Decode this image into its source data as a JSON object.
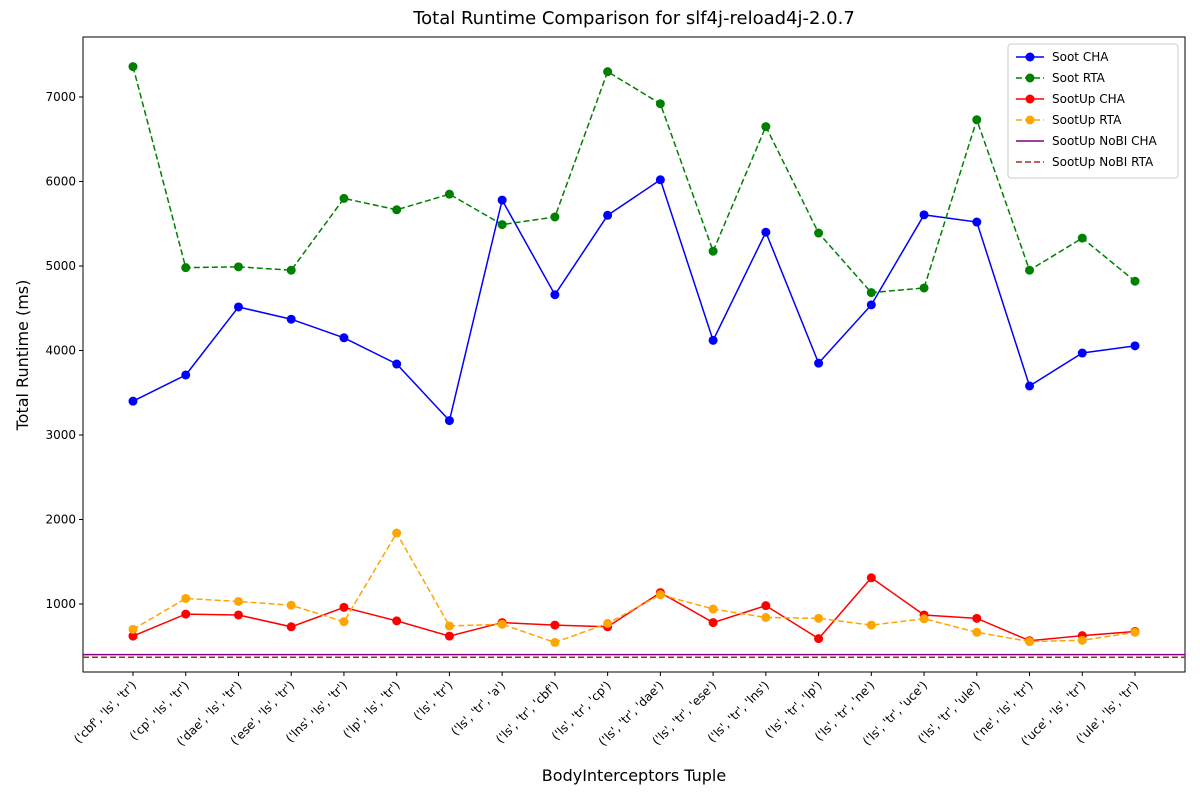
{
  "chart_data": {
    "type": "line",
    "title": "Total Runtime Comparison for slf4j-reload4j-2.0.7",
    "x_label": "BodyInterceptors Tuple",
    "y_label": "Total Runtime (ms)",
    "categories": [
      "('cbf', 'ls', 'tr')",
      "('cp', 'ls', 'tr')",
      "('dae', 'ls', 'tr')",
      "('ese', 'ls', 'tr')",
      "('lns', 'ls', 'tr')",
      "('lp', 'ls', 'tr')",
      "('ls', 'tr')",
      "('ls', 'tr', 'a')",
      "('ls', 'tr', 'cbf')",
      "('ls', 'tr', 'cp')",
      "('ls', 'tr', 'dae')",
      "('ls', 'tr', 'ese')",
      "('ls', 'tr', 'lns')",
      "('ls', 'tr', 'lp')",
      "('ls', 'tr', 'ne')",
      "('ls', 'tr', 'uce')",
      "('ls', 'tr', 'ule')",
      "('ne', 'ls', 'tr')",
      "('uce', 'ls', 'tr')",
      "('ule', 'ls', 'tr')"
    ],
    "series": [
      {
        "name": "Soot CHA",
        "color": "#0000ff",
        "dash": false,
        "marker": true,
        "values": [
          3400,
          3710,
          4515,
          4370,
          4150,
          3840,
          3170,
          5780,
          4660,
          5600,
          6020,
          4120,
          5400,
          3850,
          4540,
          5605,
          5520,
          3580,
          3970,
          4055
        ]
      },
      {
        "name": "Soot RTA",
        "color": "#008000",
        "dash": true,
        "marker": true,
        "values": [
          7360,
          4980,
          4990,
          4950,
          5800,
          5665,
          5850,
          5490,
          5580,
          7300,
          6920,
          5175,
          6650,
          5390,
          4685,
          4740,
          6730,
          4950,
          5330,
          4820
        ]
      },
      {
        "name": "SootUp CHA",
        "color": "#ff0000",
        "dash": false,
        "marker": true,
        "values": [
          620,
          880,
          870,
          730,
          960,
          800,
          620,
          780,
          750,
          730,
          1135,
          780,
          980,
          590,
          1310,
          870,
          830,
          565,
          625,
          675
        ]
      },
      {
        "name": "SootUp RTA",
        "color": "#ffa500",
        "dash": true,
        "marker": true,
        "values": [
          700,
          1065,
          1030,
          985,
          790,
          1840,
          740,
          760,
          545,
          770,
          1110,
          940,
          840,
          830,
          750,
          825,
          665,
          555,
          570,
          665
        ]
      },
      {
        "name": "SootUp NoBI CHA",
        "color": "#800080",
        "dash": false,
        "marker": false,
        "hline": 400
      },
      {
        "name": "SootUp NoBI RTA",
        "color": "#a52a2a",
        "dash": true,
        "marker": false,
        "hline": 370
      }
    ],
    "ylim": [
      195,
      7710
    ],
    "yticks": [
      1000,
      2000,
      3000,
      4000,
      5000,
      6000,
      7000
    ],
    "legend": "upper right"
  }
}
